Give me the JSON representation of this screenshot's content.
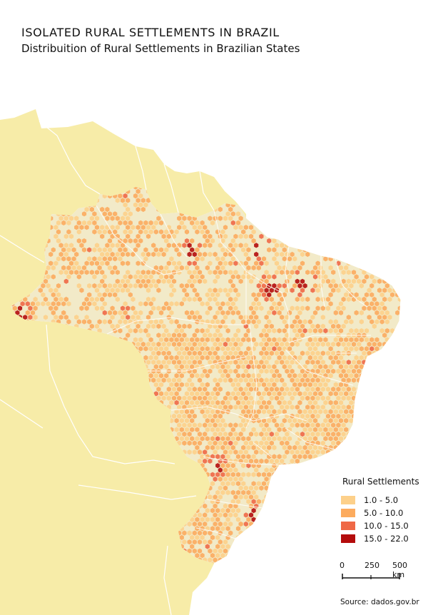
{
  "title": "ISOLATED RURAL SETTLEMENTS IN BRAZIL",
  "subtitle": "Distribuition of Rural Settlements in Brazilian States",
  "colors": {
    "background": "#ffffff",
    "neighbors": "#f7eca8",
    "state_fill": "#f2eac8",
    "borders": "#ffffff"
  },
  "legend": {
    "title": "Rural Settlements",
    "items": [
      {
        "label": "1.0 - 5.0",
        "color": "#fdd08a"
      },
      {
        "label": "5.0 - 10.0",
        "color": "#fcab5e"
      },
      {
        "label": "10.0 - 15.0",
        "color": "#ef6846"
      },
      {
        "label": "15.0 - 22.0",
        "color": "#b40c0c"
      }
    ]
  },
  "scale_bar": {
    "ticks": [
      "0",
      "250",
      "500 km"
    ]
  },
  "source": "Source: dados.gov.br"
}
